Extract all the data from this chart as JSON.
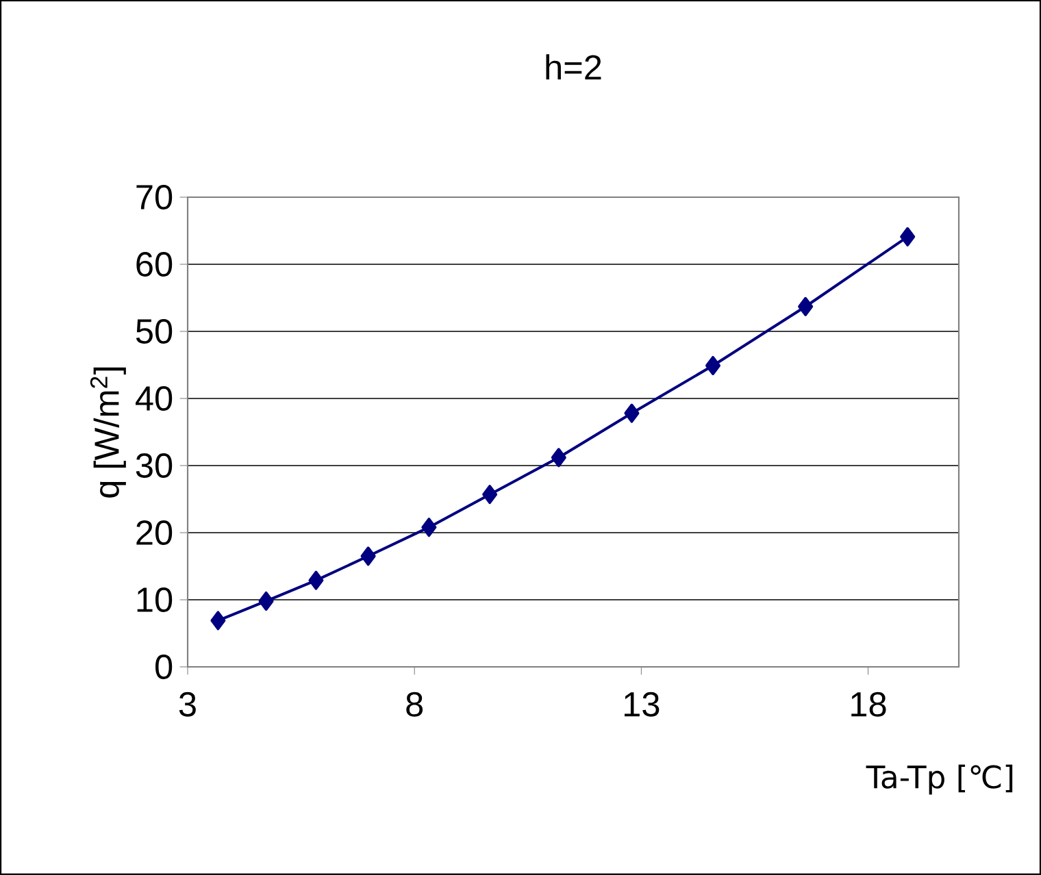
{
  "chart_data": {
    "type": "line",
    "title": "h=2",
    "xlabel": "Ta-Tp [℃]",
    "ylabel": "q [W/m$^{2}$]",
    "x": [
      3.67,
      4.73,
      5.83,
      6.98,
      8.32,
      9.66,
      11.18,
      12.79,
      14.58,
      16.62,
      18.87
    ],
    "series": [
      {
        "color": "#000080",
        "values": [
          6.9,
          9.8,
          12.9,
          16.5,
          20.8,
          25.7,
          31.2,
          37.8,
          44.9,
          53.7,
          64.1
        ]
      }
    ],
    "xlim": [
      3,
      20
    ],
    "xticks": [
      3,
      8,
      13,
      18
    ],
    "ylim": [
      0,
      70
    ],
    "yticks": [
      0,
      10,
      20,
      30,
      40,
      50,
      60,
      70
    ],
    "grid": "y",
    "marker": "diamond",
    "line_style": "solid"
  }
}
